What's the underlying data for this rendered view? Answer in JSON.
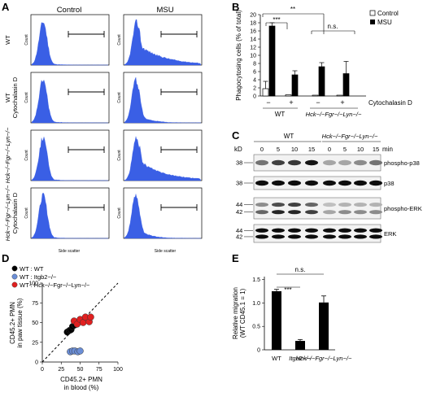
{
  "figure": {
    "panel_letters": [
      "A",
      "B",
      "C",
      "D",
      "E"
    ],
    "panelA": {
      "col_labels": [
        "Control",
        "MSU"
      ],
      "row_labels": [
        [
          "WT"
        ],
        [
          "WT",
          "Cytochalasin D"
        ],
        [
          "Hck−/−Fgr−/−Lyn−/−"
        ],
        [
          "Hck−/−Fgr−/−Lyn−/−",
          "Cytochalasin D"
        ]
      ],
      "y_axis_label": "Count",
      "x_axis_label": "Side scatter",
      "hist_color": "#3a5fe5"
    },
    "panelB": {
      "legend": [
        "Control",
        "MSU"
      ],
      "ylabel": "Phagocytosing cells (% of total)",
      "yticks": [
        "0",
        "2",
        "4",
        "6",
        "8",
        "10",
        "12",
        "14",
        "16",
        "18",
        "20"
      ],
      "sig": [
        "***",
        "**",
        "n.s."
      ],
      "cyto_row": [
        "−",
        "+",
        "−",
        "+"
      ],
      "cyto_label": "Cytochalasin D",
      "groups": [
        "WT",
        "Hck−/−Fgr−/−Lyn−/−"
      ]
    },
    "panelC": {
      "groups": [
        "WT",
        "Hck−/−Fgr−/−Lyn−/−"
      ],
      "kd_label": "kD",
      "times": [
        "0",
        "5",
        "10",
        "15",
        "0",
        "5",
        "10",
        "15"
      ],
      "min_label": "min",
      "blots": [
        {
          "name": "phospho-p38",
          "kd": [
            "38"
          ]
        },
        {
          "name": "p38",
          "kd": [
            "38"
          ]
        },
        {
          "name": "phospho-ERK",
          "kd": [
            "44",
            "42"
          ]
        },
        {
          "name": "ERK",
          "kd": [
            "44",
            "42"
          ]
        }
      ]
    },
    "panelD": {
      "legend": [
        {
          "label": "WT : WT",
          "color": "#000000"
        },
        {
          "label": "WT : Itgb2−/−",
          "color": "#6b8ed6"
        },
        {
          "label": "WT : Hck−/−Fgr−/−Lyn−/−",
          "color": "#e02020"
        }
      ],
      "ylabel": [
        "CD45.2+ PMN",
        "in paw tissue (%)"
      ],
      "xlabel": [
        "CD45.2+ PMN",
        "in blood (%)"
      ],
      "ticks": [
        "0",
        "25",
        "50",
        "75",
        "100"
      ]
    },
    "panelE": {
      "ylabel": [
        "Relative migration",
        "(WT CD45.1 = 1)"
      ],
      "yticks": [
        "0",
        "0.5",
        "1.0",
        "1.5"
      ],
      "sig": [
        "***",
        "n.s."
      ],
      "categories": [
        "WT",
        "Itgb2−/−",
        "Hck−/−Fgr−/−Lyn−/−"
      ]
    }
  },
  "chart_data": [
    {
      "type": "bar",
      "panel": "B",
      "categories": [
        "WT −",
        "WT +",
        "Hck−/−Fgr−/−Lyn−/− −",
        "Hck−/−Fgr−/−Lyn−/− +"
      ],
      "series": [
        {
          "name": "Control",
          "values": [
            1.8,
            0.3,
            0.2,
            0.2
          ],
          "errors": [
            1.8,
            0,
            0,
            0
          ]
        },
        {
          "name": "MSU",
          "values": [
            17.2,
            5.2,
            7.2,
            5.5
          ],
          "errors": [
            0.8,
            1.0,
            1.0,
            3.0
          ]
        }
      ],
      "ylim": [
        0,
        20
      ]
    },
    {
      "type": "scatter",
      "panel": "D",
      "xlim": [
        0,
        100
      ],
      "ylim": [
        0,
        100
      ],
      "series": [
        {
          "name": "WT : WT",
          "x": [
            33,
            36,
            38,
            40,
            43,
            47
          ],
          "y": [
            38,
            40,
            41,
            45,
            47,
            50
          ]
        },
        {
          "name": "WT : Itgb2−/−",
          "x": [
            37,
            40,
            43,
            47,
            50
          ],
          "y": [
            13,
            14,
            14,
            13,
            14
          ]
        },
        {
          "name": "WT : Hck−/−Fgr−/−Lyn−/−",
          "x": [
            42,
            46,
            50,
            54,
            57,
            62,
            64
          ],
          "y": [
            52,
            48,
            54,
            50,
            57,
            51,
            57
          ]
        }
      ],
      "reference_line": "y = x"
    },
    {
      "type": "bar",
      "panel": "E",
      "categories": [
        "WT",
        "Itgb2−/−",
        "Hck−/−Fgr−/−Lyn−/−"
      ],
      "values": [
        1.25,
        0.19,
        1.01
      ],
      "errors": [
        0.04,
        0.03,
        0.14
      ],
      "ylim": [
        0,
        1.5
      ]
    }
  ]
}
